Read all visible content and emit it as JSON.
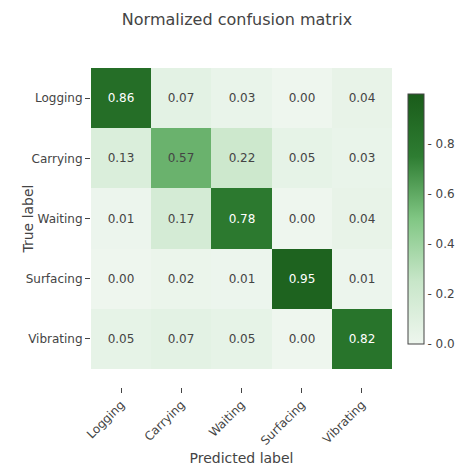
{
  "chart_data": {
    "type": "heatmap",
    "title": "Normalized confusion matrix",
    "xlabel": "Predicted label",
    "ylabel": "True label",
    "categories": [
      "Logging",
      "Carrying",
      "Waiting",
      "Surfacing",
      "Vibrating"
    ],
    "values": [
      [
        0.86,
        0.07,
        0.03,
        0.0,
        0.04
      ],
      [
        0.13,
        0.57,
        0.22,
        0.05,
        0.03
      ],
      [
        0.01,
        0.17,
        0.78,
        0.0,
        0.04
      ],
      [
        0.0,
        0.02,
        0.01,
        0.95,
        0.01
      ],
      [
        0.05,
        0.07,
        0.05,
        0.0,
        0.82
      ]
    ],
    "value_labels": [
      [
        "0.86",
        "0.07",
        "0.03",
        "0.00",
        "0.04"
      ],
      [
        "0.13",
        "0.57",
        "0.22",
        "0.05",
        "0.03"
      ],
      [
        "0.01",
        "0.17",
        "0.78",
        "0.00",
        "0.04"
      ],
      [
        "0.00",
        "0.02",
        "0.01",
        "0.95",
        "0.01"
      ],
      [
        "0.05",
        "0.07",
        "0.05",
        "0.00",
        "0.82"
      ]
    ],
    "data_labels": true,
    "colors": [
      "#eef6ee",
      "#c8e6c9",
      "#81c784",
      "#2e7d32",
      "#1a5c1a"
    ],
    "colorbar_range": [
      0.0,
      1.0
    ],
    "colorbar_ticks": [
      {
        "value": 0.0,
        "label": "- 0.0"
      },
      {
        "value": 0.2,
        "label": "- 0.2"
      },
      {
        "value": 0.4,
        "label": "- 0.4"
      },
      {
        "value": 0.6,
        "label": "- 0.6"
      },
      {
        "value": 0.8,
        "label": "- 0.8"
      }
    ]
  }
}
